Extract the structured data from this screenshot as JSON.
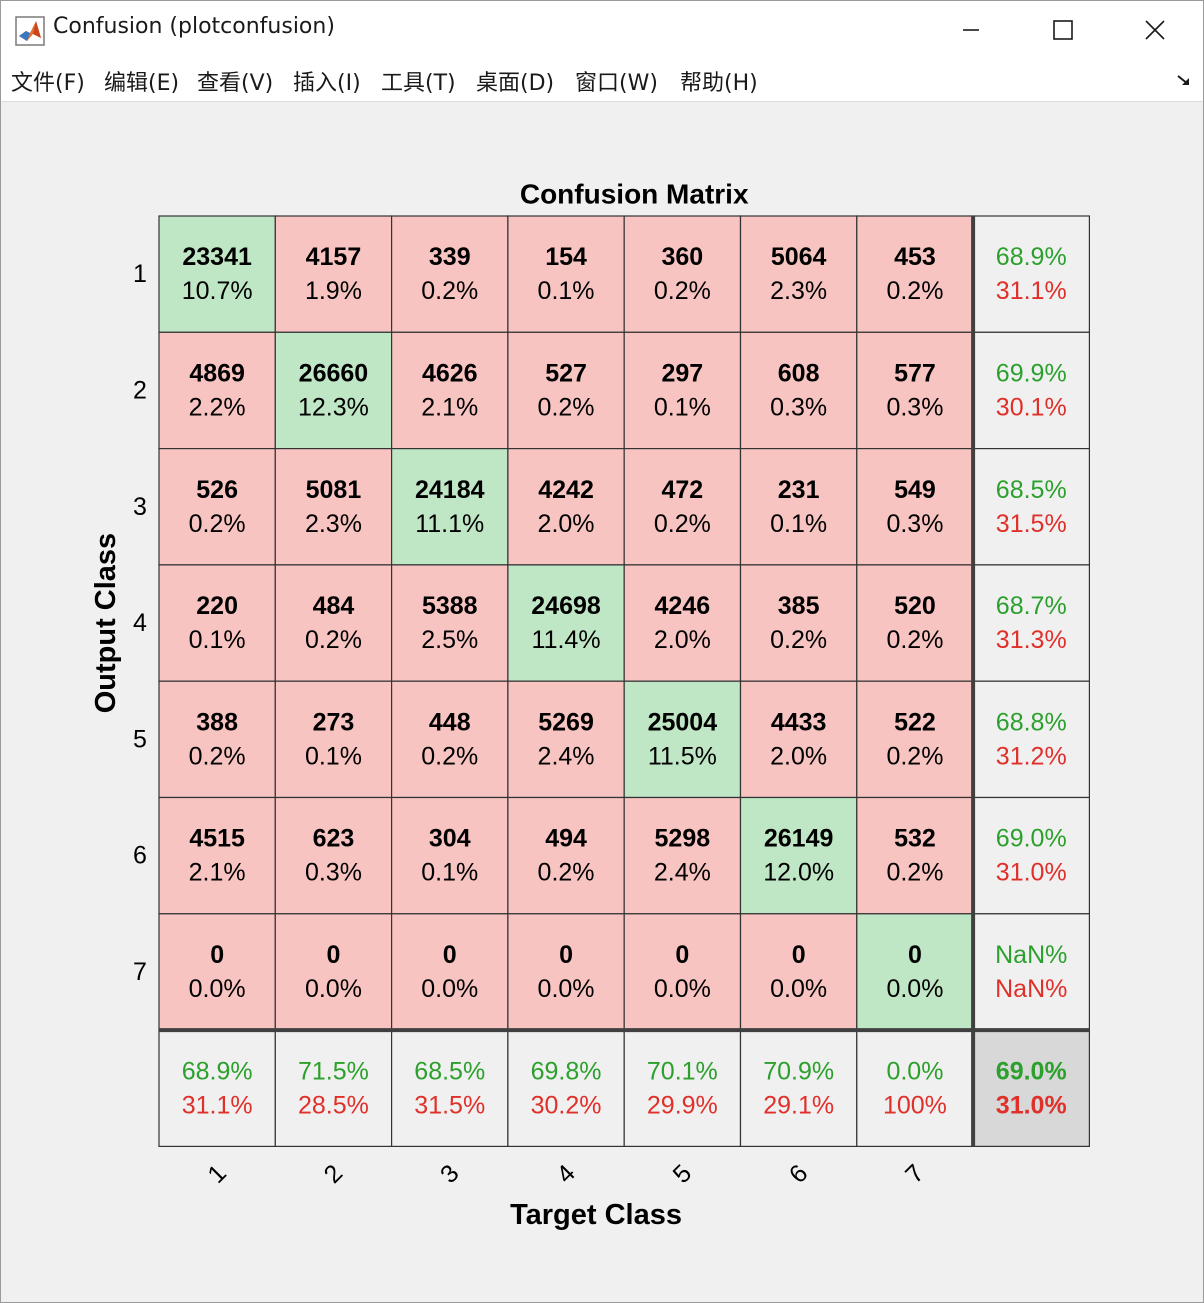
{
  "window": {
    "title": "Confusion (plotconfusion)",
    "controls": {
      "minimize": "minimize",
      "maximize": "maximize",
      "close": "close"
    }
  },
  "menubar": {
    "items": [
      {
        "label": "文件(F)"
      },
      {
        "label": "编辑(E)"
      },
      {
        "label": "查看(V)"
      },
      {
        "label": "插入(I)"
      },
      {
        "label": "工具(T)"
      },
      {
        "label": "桌面(D)"
      },
      {
        "label": "窗口(W)"
      },
      {
        "label": "帮助(H)"
      }
    ]
  },
  "colors": {
    "diagonal": "#bfe6c5",
    "offdiagonal": "#f7c4c1",
    "summary": "#f0f0f0",
    "overall": "#d8d8d8",
    "correct_text": "#2ca02c",
    "error_text": "#e0302a"
  },
  "chart_data": {
    "type": "table",
    "title": "Confusion Matrix",
    "xlabel": "Target Class",
    "ylabel": "Output Class",
    "classes": [
      "1",
      "2",
      "3",
      "4",
      "5",
      "6",
      "7"
    ],
    "matrix": [
      [
        23341,
        4157,
        339,
        154,
        360,
        5064,
        453
      ],
      [
        4869,
        26660,
        4626,
        527,
        297,
        608,
        577
      ],
      [
        526,
        5081,
        24184,
        4242,
        472,
        231,
        549
      ],
      [
        220,
        484,
        5388,
        24698,
        4246,
        385,
        520
      ],
      [
        388,
        273,
        448,
        5269,
        25004,
        4433,
        522
      ],
      [
        4515,
        623,
        304,
        494,
        5298,
        26149,
        532
      ],
      [
        0,
        0,
        0,
        0,
        0,
        0,
        0
      ]
    ],
    "percentages": [
      [
        "10.7%",
        "1.9%",
        "0.2%",
        "0.1%",
        "0.2%",
        "2.3%",
        "0.2%"
      ],
      [
        "2.2%",
        "12.3%",
        "2.1%",
        "0.2%",
        "0.1%",
        "0.3%",
        "0.3%"
      ],
      [
        "0.2%",
        "2.3%",
        "11.1%",
        "2.0%",
        "0.2%",
        "0.1%",
        "0.3%"
      ],
      [
        "0.1%",
        "0.2%",
        "2.5%",
        "11.4%",
        "2.0%",
        "0.2%",
        "0.2%"
      ],
      [
        "0.2%",
        "0.1%",
        "0.2%",
        "2.4%",
        "11.5%",
        "2.0%",
        "0.2%"
      ],
      [
        "2.1%",
        "0.3%",
        "0.1%",
        "0.2%",
        "2.4%",
        "12.0%",
        "0.2%"
      ],
      [
        "0.0%",
        "0.0%",
        "0.0%",
        "0.0%",
        "0.0%",
        "0.0%",
        "0.0%"
      ]
    ],
    "row_summary": [
      {
        "correct": "68.9%",
        "error": "31.1%"
      },
      {
        "correct": "69.9%",
        "error": "30.1%"
      },
      {
        "correct": "68.5%",
        "error": "31.5%"
      },
      {
        "correct": "68.7%",
        "error": "31.3%"
      },
      {
        "correct": "68.8%",
        "error": "31.2%"
      },
      {
        "correct": "69.0%",
        "error": "31.0%"
      },
      {
        "correct": "NaN%",
        "error": "NaN%"
      }
    ],
    "col_summary": [
      {
        "correct": "68.9%",
        "error": "31.1%"
      },
      {
        "correct": "71.5%",
        "error": "28.5%"
      },
      {
        "correct": "68.5%",
        "error": "31.5%"
      },
      {
        "correct": "69.8%",
        "error": "30.2%"
      },
      {
        "correct": "70.1%",
        "error": "29.9%"
      },
      {
        "correct": "70.9%",
        "error": "29.1%"
      },
      {
        "correct": "0.0%",
        "error": "100%"
      }
    ],
    "overall": {
      "correct": "69.0%",
      "error": "31.0%"
    }
  }
}
